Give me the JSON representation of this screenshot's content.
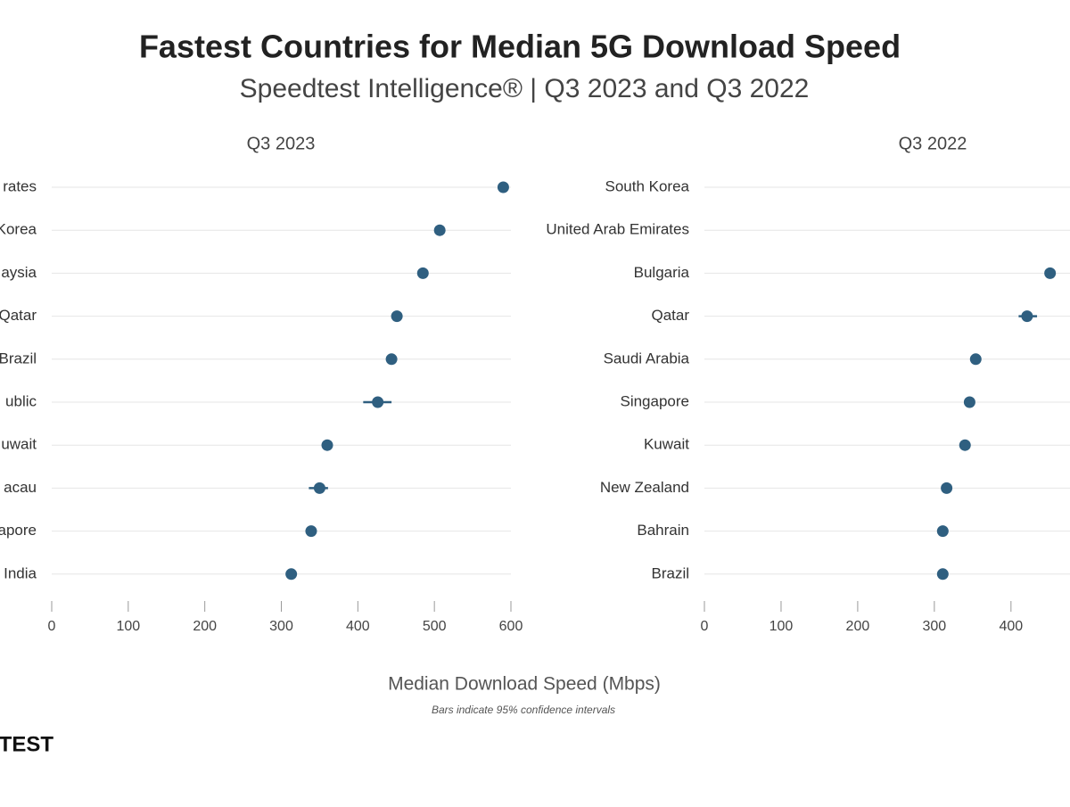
{
  "title": "Fastest Countries for Median 5G Download Speed",
  "subtitle": "Speedtest Intelligence® | Q3 2023 and Q3 2022",
  "xlabel": "Median Download Speed (Mbps)",
  "note": "Bars indicate 95% confidence intervals",
  "logo": "TEST",
  "chart_data": [
    {
      "type": "dot",
      "title": "Q3 2023",
      "color": "#2f5f80",
      "categories": [
        "rates",
        "Korea",
        "aysia",
        "Qatar",
        "Brazil",
        "ublic",
        "uwait",
        "acau",
        "apore",
        "India"
      ],
      "values": [
        590,
        507,
        485,
        451,
        444,
        426,
        360,
        350,
        339,
        313
      ],
      "ci_low": [
        null,
        null,
        null,
        444,
        null,
        407,
        null,
        336,
        null,
        null
      ],
      "ci_high": [
        null,
        null,
        null,
        456,
        null,
        444,
        null,
        361,
        null,
        null
      ],
      "xlim": [
        0,
        600
      ],
      "xticks": [
        0,
        100,
        200,
        300,
        400,
        500,
        600
      ]
    },
    {
      "type": "dot",
      "title": "Q3 2022",
      "color": "#2f5f80",
      "categories": [
        "South Korea",
        "United Arab Emirates",
        "Bulgaria",
        "Qatar",
        "Saudi Arabia",
        "Singapore",
        "Kuwait",
        "New Zealand",
        "Bahrain",
        "Brazil"
      ],
      "values": [
        null,
        null,
        451,
        421,
        354,
        346,
        340,
        316,
        311,
        311
      ],
      "ci_low": [
        null,
        null,
        null,
        410,
        null,
        null,
        null,
        null,
        null,
        null
      ],
      "ci_high": [
        null,
        null,
        null,
        434,
        null,
        null,
        null,
        null,
        null,
        null
      ],
      "xlim": [
        0,
        477
      ],
      "xticks": [
        0,
        100,
        200,
        300,
        400
      ]
    }
  ]
}
